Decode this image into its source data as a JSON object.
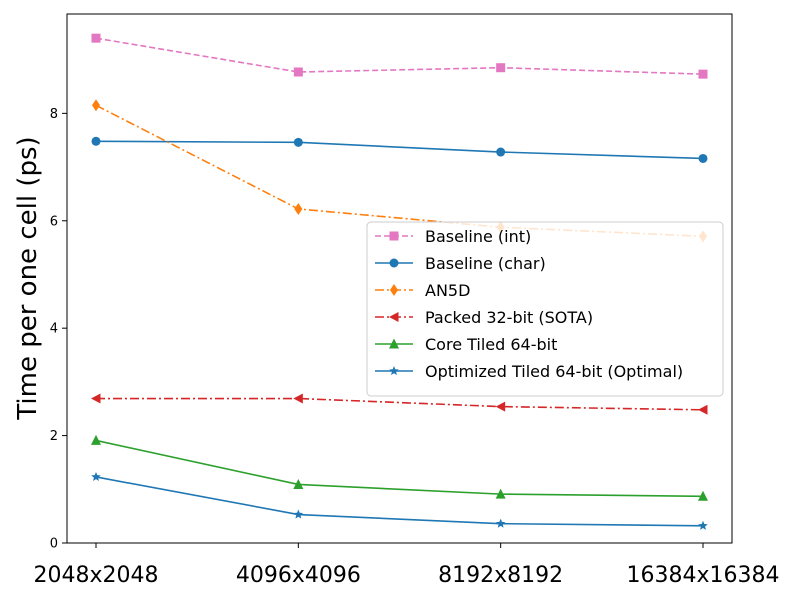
{
  "chart_data": {
    "type": "line",
    "title": "",
    "xlabel": "",
    "ylabel": "Time per one cell (ps)",
    "categories": [
      "2048x2048",
      "4096x4096",
      "8192x8192",
      "16384x16384"
    ],
    "ylim": [
      0,
      9.85
    ],
    "yticks": [
      0,
      2,
      4,
      6,
      8
    ],
    "grid": false,
    "legend_position": "center-right",
    "series": [
      {
        "name": "Baseline (int)",
        "values": [
          9.4,
          8.77,
          8.85,
          8.73
        ],
        "color": "#e377c2",
        "dash": "dashed",
        "marker": "square"
      },
      {
        "name": "Baseline (char)",
        "values": [
          7.48,
          7.46,
          7.28,
          7.16
        ],
        "color": "#1f77b4",
        "dash": "solid",
        "marker": "circle"
      },
      {
        "name": "AN5D",
        "values": [
          8.15,
          6.22,
          5.88,
          5.71
        ],
        "color": "#ff7f0e",
        "dash": "dashdot",
        "marker": "diamond"
      },
      {
        "name": "Packed 32-bit (SOTA)",
        "values": [
          2.69,
          2.69,
          2.54,
          2.48
        ],
        "color": "#d62728",
        "dash": "dashdot",
        "marker": "triangle-left"
      },
      {
        "name": "Core Tiled 64-bit",
        "values": [
          1.91,
          1.09,
          0.91,
          0.87
        ],
        "color": "#2ca02c",
        "dash": "solid",
        "marker": "triangle-up"
      },
      {
        "name": "Optimized Tiled 64-bit (Optimal)",
        "values": [
          1.23,
          0.53,
          0.36,
          0.32
        ],
        "color": "#1f77b4",
        "dash": "solid",
        "marker": "star"
      }
    ]
  }
}
